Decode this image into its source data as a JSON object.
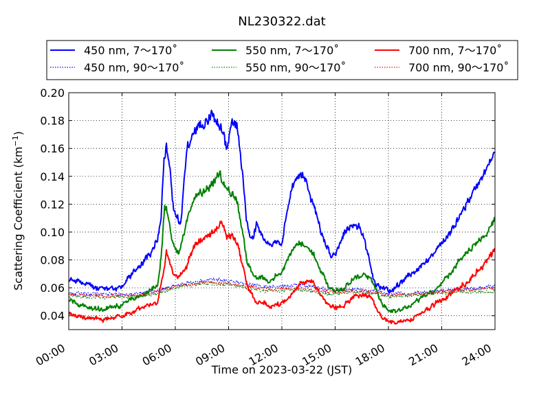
{
  "chart_data": {
    "type": "line",
    "title": "NL230322.dat",
    "xlabel": "Time on 2023-03-22 (JST)",
    "ylabel": "Scattering Coefficient (km",
    "ylabel_sup": "−1",
    "ylabel_close": ")",
    "xlim": [
      0,
      24
    ],
    "ylim": [
      0.03,
      0.2
    ],
    "x_ticks": [
      0,
      3,
      6,
      9,
      12,
      15,
      18,
      21,
      24
    ],
    "x_tick_labels": [
      "00:00",
      "03:00",
      "06:00",
      "09:00",
      "12:00",
      "15:00",
      "18:00",
      "21:00",
      "24:00"
    ],
    "y_ticks": [
      0.04,
      0.06,
      0.08,
      0.1,
      0.12,
      0.14,
      0.16,
      0.18,
      0.2
    ],
    "y_tick_labels": [
      "0.04",
      "0.06",
      "0.08",
      "0.10",
      "0.12",
      "0.14",
      "0.16",
      "0.18",
      "0.20"
    ],
    "grid": true,
    "legend_position": "above-plot",
    "legend_columns": 3,
    "series": [
      {
        "name": "450 nm, 7～170˚",
        "color": "#0000ff",
        "style": "solid",
        "x": [
          0,
          0.5,
          1,
          1.5,
          2,
          2.5,
          3,
          3.3,
          3.6,
          4,
          4.3,
          4.6,
          5,
          5.2,
          5.35,
          5.5,
          5.7,
          5.9,
          6.1,
          6.3,
          6.5,
          6.7,
          7,
          7.3,
          7.6,
          8,
          8.3,
          8.6,
          8.9,
          9.2,
          9.5,
          9.8,
          10,
          10.2,
          10.4,
          10.6,
          10.8,
          11,
          11.2,
          11.5,
          11.8,
          12,
          12.2,
          12.4,
          12.6,
          12.8,
          13,
          13.3,
          13.6,
          13.9,
          14.2,
          14.5,
          14.8,
          15,
          15.2,
          15.5,
          15.8,
          16,
          16.3,
          16.6,
          16.9,
          17.1,
          17.3,
          17.6,
          18,
          18.3,
          18.6,
          19,
          19.5,
          20,
          20.5,
          21,
          21.5,
          22,
          22.5,
          23,
          23.5,
          23.8,
          24
        ],
        "y": [
          0.066,
          0.066,
          0.063,
          0.06,
          0.059,
          0.06,
          0.059,
          0.067,
          0.07,
          0.074,
          0.082,
          0.084,
          0.095,
          0.11,
          0.15,
          0.163,
          0.145,
          0.115,
          0.11,
          0.105,
          0.138,
          0.162,
          0.17,
          0.177,
          0.176,
          0.185,
          0.18,
          0.175,
          0.16,
          0.18,
          0.175,
          0.14,
          0.11,
          0.095,
          0.097,
          0.107,
          0.1,
          0.095,
          0.092,
          0.092,
          0.094,
          0.09,
          0.108,
          0.122,
          0.134,
          0.138,
          0.141,
          0.138,
          0.125,
          0.115,
          0.1,
          0.09,
          0.082,
          0.083,
          0.09,
          0.1,
          0.102,
          0.104,
          0.104,
          0.098,
          0.082,
          0.068,
          0.062,
          0.06,
          0.058,
          0.059,
          0.062,
          0.068,
          0.072,
          0.077,
          0.085,
          0.092,
          0.1,
          0.11,
          0.122,
          0.135,
          0.145,
          0.155,
          0.158
        ]
      },
      {
        "name": "450 nm, 90～170˚",
        "color": "#0000ff",
        "style": "dotted",
        "x": [
          0,
          2,
          4,
          5,
          6,
          7,
          8,
          9,
          10,
          11,
          12,
          13,
          14,
          15,
          16,
          17,
          18,
          19,
          20,
          21,
          22,
          23,
          24
        ],
        "y": [
          0.056,
          0.055,
          0.056,
          0.058,
          0.062,
          0.064,
          0.066,
          0.065,
          0.063,
          0.061,
          0.061,
          0.062,
          0.06,
          0.058,
          0.059,
          0.058,
          0.056,
          0.056,
          0.057,
          0.058,
          0.059,
          0.06,
          0.061
        ]
      },
      {
        "name": "550 nm, 7～170˚",
        "color": "#008000",
        "style": "solid",
        "x": [
          0,
          0.5,
          1,
          1.5,
          2,
          2.5,
          3,
          3.5,
          4,
          4.5,
          5,
          5.2,
          5.4,
          5.6,
          5.8,
          6,
          6.2,
          6.5,
          6.8,
          7.1,
          7.5,
          7.9,
          8.2,
          8.5,
          8.8,
          9.2,
          9.5,
          9.8,
          10,
          10.3,
          10.6,
          10.9,
          11.2,
          11.5,
          11.8,
          12,
          12.3,
          12.6,
          13,
          13.4,
          13.8,
          14.2,
          14.6,
          15,
          15.5,
          16,
          16.5,
          17,
          17.3,
          17.6,
          18,
          18.5,
          19,
          19.5,
          20,
          20.5,
          21,
          21.5,
          22,
          22.5,
          23,
          23.5,
          24
        ],
        "y": [
          0.052,
          0.048,
          0.046,
          0.045,
          0.044,
          0.046,
          0.048,
          0.052,
          0.054,
          0.057,
          0.06,
          0.082,
          0.118,
          0.112,
          0.095,
          0.088,
          0.084,
          0.1,
          0.115,
          0.125,
          0.128,
          0.132,
          0.137,
          0.142,
          0.132,
          0.128,
          0.122,
          0.098,
          0.08,
          0.072,
          0.067,
          0.068,
          0.064,
          0.066,
          0.07,
          0.072,
          0.08,
          0.087,
          0.092,
          0.09,
          0.083,
          0.072,
          0.062,
          0.057,
          0.06,
          0.066,
          0.069,
          0.068,
          0.058,
          0.05,
          0.044,
          0.043,
          0.046,
          0.05,
          0.054,
          0.058,
          0.064,
          0.07,
          0.08,
          0.088,
          0.092,
          0.098,
          0.112
        ]
      },
      {
        "name": "550 nm, 90～170˚",
        "color": "#008000",
        "style": "dotted",
        "x": [
          0,
          2,
          4,
          5,
          6,
          7,
          8,
          9,
          10,
          11,
          12,
          13,
          14,
          15,
          16,
          17,
          18,
          19,
          20,
          21,
          22,
          23,
          24
        ],
        "y": [
          0.054,
          0.053,
          0.054,
          0.056,
          0.06,
          0.062,
          0.063,
          0.062,
          0.06,
          0.058,
          0.058,
          0.059,
          0.057,
          0.055,
          0.057,
          0.056,
          0.054,
          0.054,
          0.055,
          0.056,
          0.057,
          0.057,
          0.057
        ]
      },
      {
        "name": "700 nm, 7～170˚",
        "color": "#ff0000",
        "style": "solid",
        "x": [
          0,
          0.5,
          1,
          1.5,
          2,
          2.5,
          3,
          3.5,
          4,
          4.5,
          5,
          5.3,
          5.5,
          5.7,
          5.9,
          6.2,
          6.5,
          6.8,
          7.1,
          7.5,
          7.9,
          8.3,
          8.6,
          8.9,
          9.2,
          9.5,
          9.8,
          10,
          10.3,
          10.6,
          11,
          11.4,
          11.8,
          12.2,
          12.6,
          13,
          13.4,
          13.8,
          14.2,
          14.6,
          15,
          15.5,
          16,
          16.5,
          17,
          17.3,
          17.6,
          18,
          18.5,
          19,
          19.5,
          20,
          20.5,
          21,
          21.5,
          22,
          22.5,
          23,
          23.5,
          24
        ],
        "y": [
          0.042,
          0.04,
          0.038,
          0.038,
          0.037,
          0.039,
          0.04,
          0.042,
          0.045,
          0.048,
          0.05,
          0.068,
          0.085,
          0.078,
          0.07,
          0.068,
          0.072,
          0.082,
          0.09,
          0.095,
          0.098,
          0.102,
          0.108,
          0.096,
          0.098,
          0.092,
          0.077,
          0.065,
          0.055,
          0.05,
          0.049,
          0.047,
          0.048,
          0.05,
          0.056,
          0.063,
          0.065,
          0.062,
          0.055,
          0.048,
          0.045,
          0.048,
          0.053,
          0.055,
          0.055,
          0.046,
          0.04,
          0.036,
          0.035,
          0.036,
          0.039,
          0.043,
          0.047,
          0.051,
          0.055,
          0.06,
          0.065,
          0.072,
          0.078,
          0.086
        ]
      },
      {
        "name": "700 nm, 90～170˚",
        "color": "#ff0000",
        "style": "dotted",
        "x": [
          0,
          2,
          4,
          5,
          6,
          7,
          8,
          9,
          10,
          11,
          12,
          13,
          14,
          15,
          16,
          17,
          18,
          19,
          20,
          21,
          22,
          23,
          24
        ],
        "y": [
          0.055,
          0.054,
          0.055,
          0.057,
          0.061,
          0.063,
          0.064,
          0.063,
          0.061,
          0.059,
          0.059,
          0.06,
          0.058,
          0.056,
          0.058,
          0.057,
          0.055,
          0.055,
          0.056,
          0.057,
          0.058,
          0.059,
          0.06
        ]
      }
    ]
  }
}
